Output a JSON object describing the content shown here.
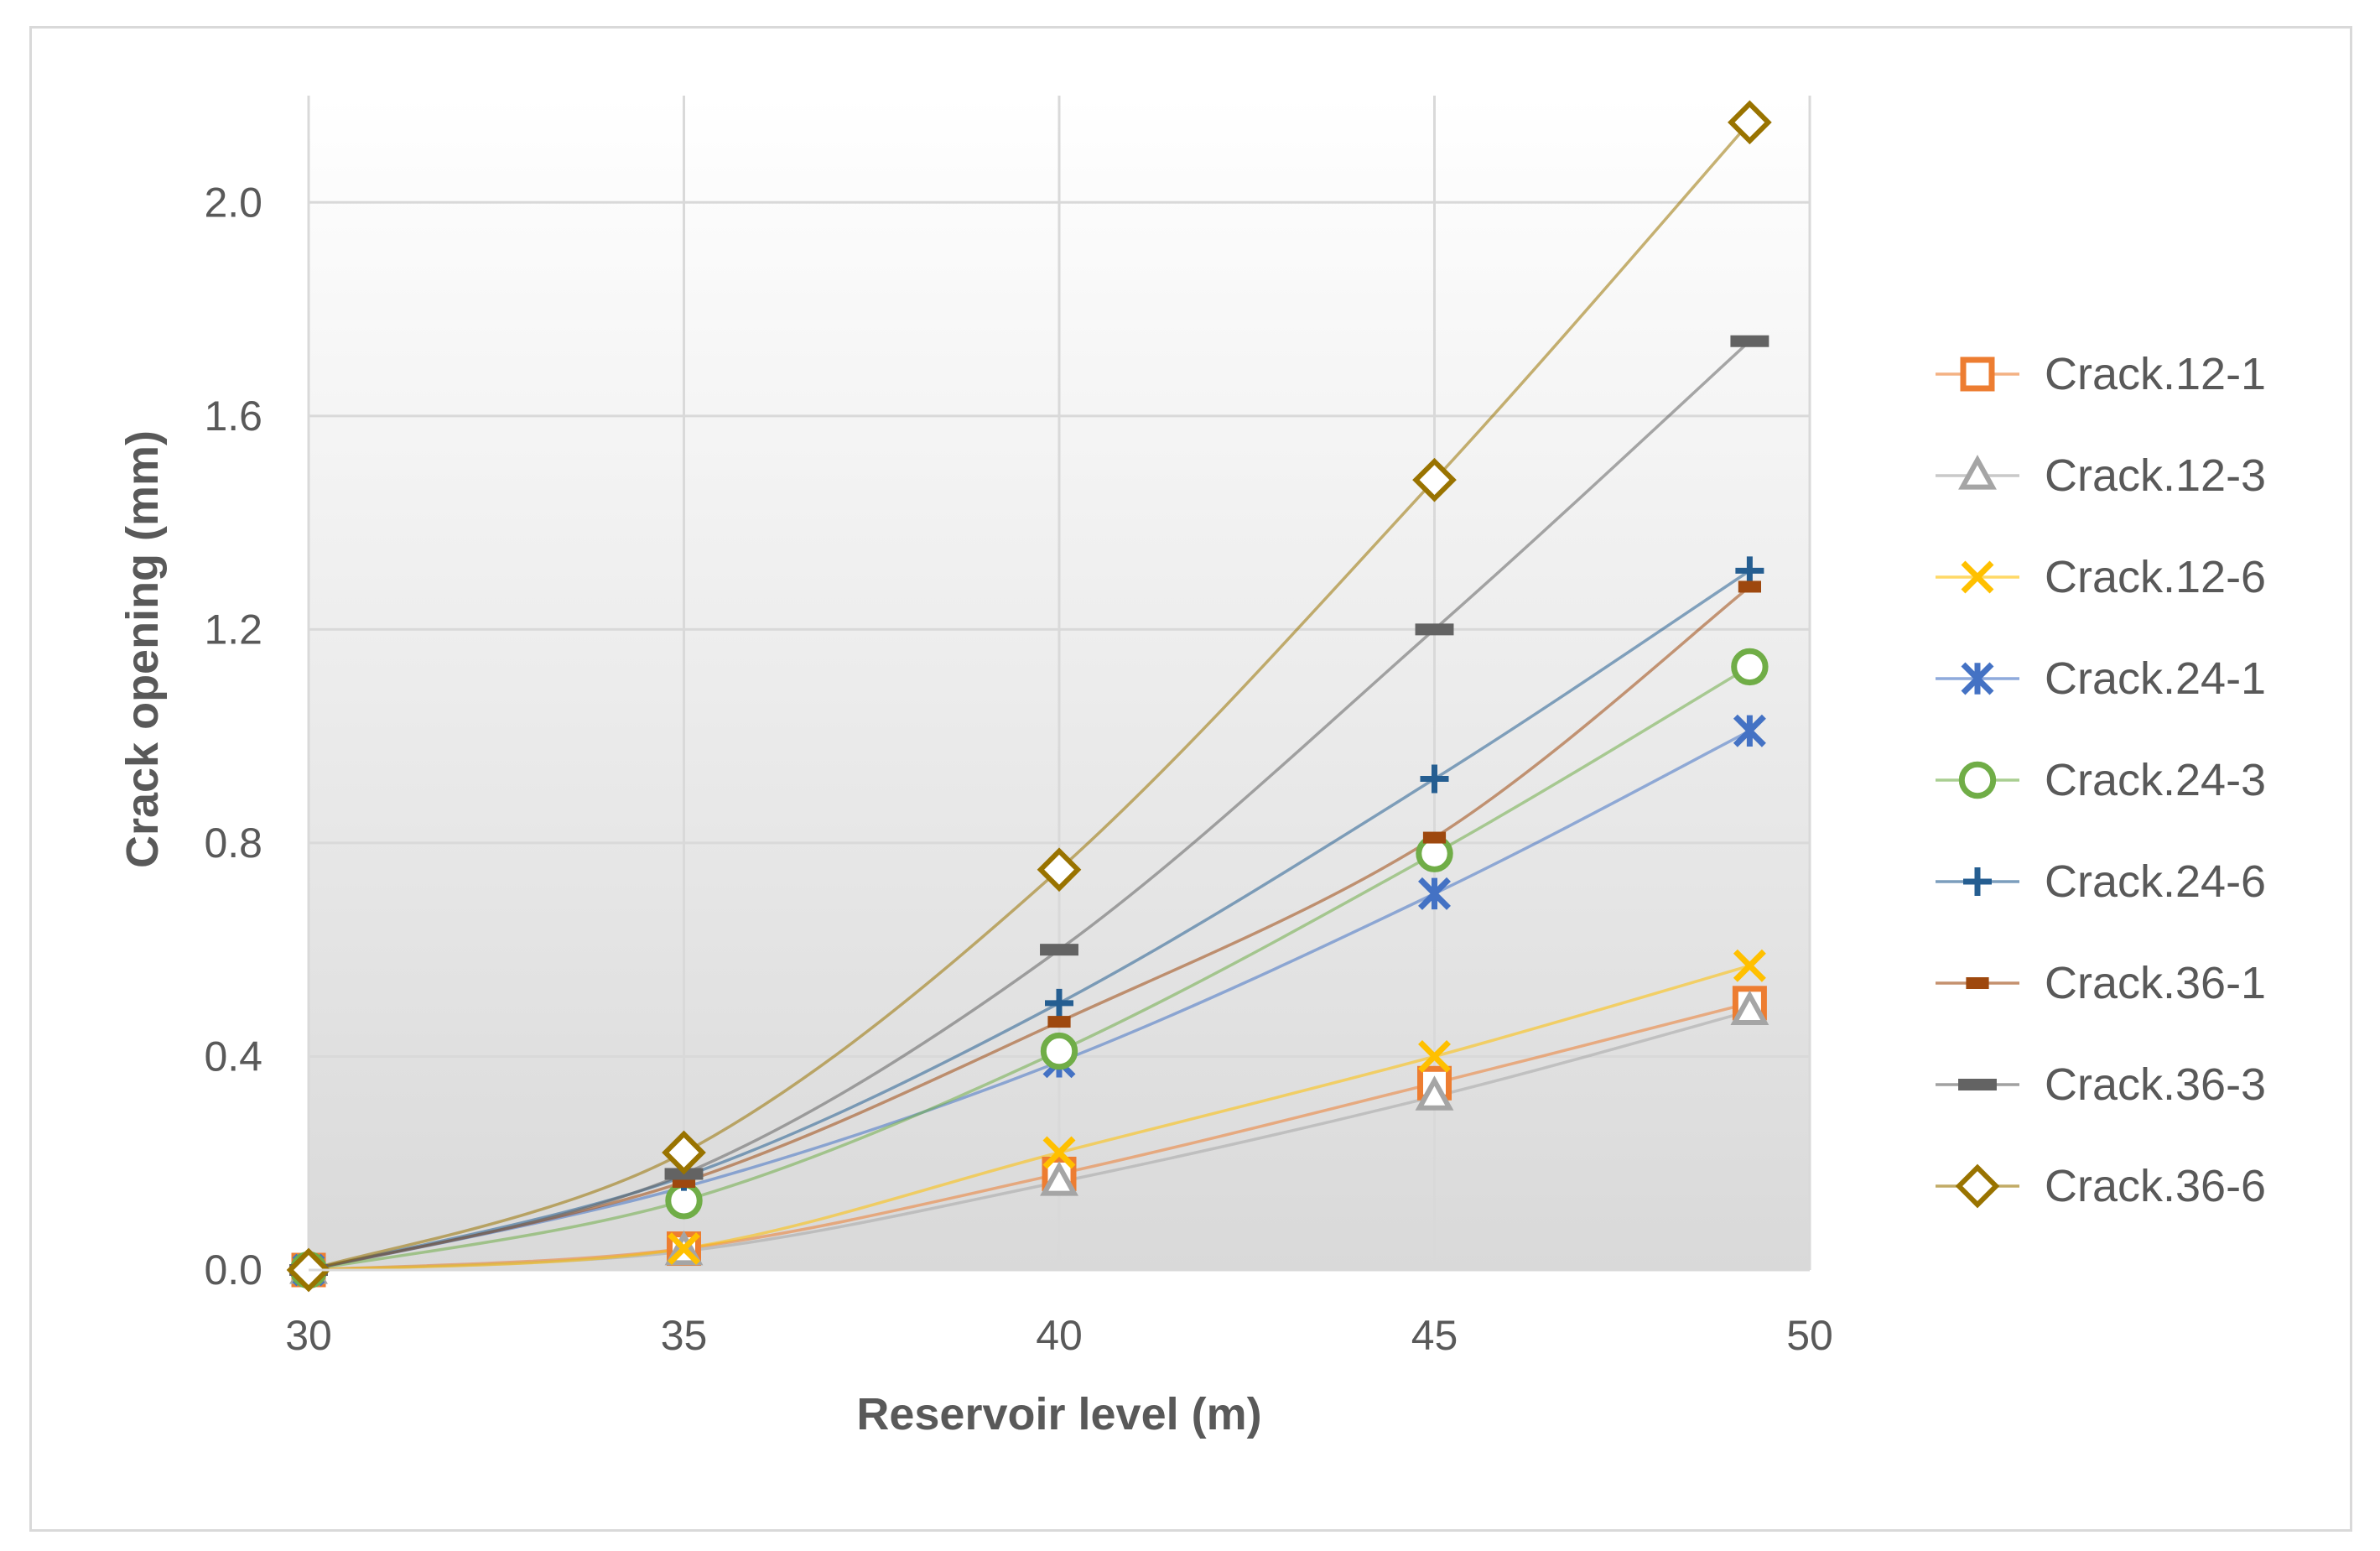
{
  "chart_data": {
    "type": "line",
    "title": "",
    "xlabel": "Reservoir level (m)",
    "ylabel": "Crack opening (mm)",
    "xlim": [
      30,
      50
    ],
    "ylim": [
      0,
      2.2
    ],
    "xticks": [
      30,
      35,
      40,
      45,
      50
    ],
    "yticks": [
      0,
      0.4,
      0.8,
      1.2,
      1.6,
      2.0
    ],
    "xtick_labels": [
      "30",
      "35",
      "40",
      "45",
      "50"
    ],
    "ytick_labels": [
      "0.0",
      "0.4",
      "0.8",
      "1.2",
      "1.6",
      "2.0"
    ],
    "grid": true,
    "legend_position": "right",
    "x": [
      30,
      35,
      40,
      45,
      49.2
    ],
    "series": [
      {
        "name": "Crack.12-1",
        "values": [
          0.0,
          0.04,
          0.18,
          0.35,
          0.5
        ],
        "color": "#ED7D31",
        "marker": "square"
      },
      {
        "name": "Crack.12-3",
        "values": [
          0.0,
          0.035,
          0.165,
          0.325,
          0.485
        ],
        "color": "#A5A5A5",
        "marker": "triangle"
      },
      {
        "name": "Crack.12-6",
        "values": [
          0.0,
          0.04,
          0.22,
          0.4,
          0.57
        ],
        "color": "#FFC000",
        "marker": "x"
      },
      {
        "name": "Crack.24-1",
        "values": [
          0.0,
          0.155,
          0.39,
          0.705,
          1.01
        ],
        "color": "#4472C4",
        "marker": "star"
      },
      {
        "name": "Crack.24-3",
        "values": [
          0.0,
          0.13,
          0.41,
          0.78,
          1.13
        ],
        "color": "#70AD47",
        "marker": "circle"
      },
      {
        "name": "Crack.24-6",
        "values": [
          0.0,
          0.175,
          0.5,
          0.92,
          1.31
        ],
        "color": "#255E91",
        "marker": "plus"
      },
      {
        "name": "Crack.36-1",
        "values": [
          0.0,
          0.165,
          0.465,
          0.81,
          1.28
        ],
        "color": "#9E480E",
        "marker": "dash-small"
      },
      {
        "name": "Crack.36-3",
        "values": [
          0.0,
          0.18,
          0.6,
          1.2,
          1.74
        ],
        "color": "#636363",
        "marker": "dash"
      },
      {
        "name": "Crack.36-6",
        "values": [
          0.0,
          0.22,
          0.75,
          1.48,
          2.15
        ],
        "color": "#997300",
        "marker": "diamond"
      }
    ]
  }
}
